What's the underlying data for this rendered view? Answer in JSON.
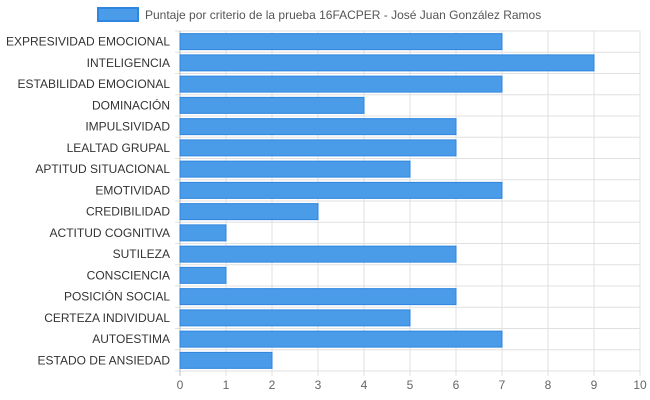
{
  "chart_data": {
    "type": "bar",
    "orientation": "horizontal",
    "categories": [
      "EXPRESIVIDAD EMOCIONAL",
      "INTELIGENCIA",
      "ESTABILIDAD EMOCIONAL",
      "DOMINACIÓN",
      "IMPULSIVIDAD",
      "LEALTAD GRUPAL",
      "APTITUD SITUACIONAL",
      "EMOTIVIDAD",
      "CREDIBILIDAD",
      "ACTITUD COGNITIVA",
      "SUTILEZA",
      "CONSCIENCIA",
      "POSICIÓN SOCIAL",
      "CERTEZA INDIVIDUAL",
      "AUTOESTIMA",
      "ESTADO DE ANSIEDAD"
    ],
    "series": [
      {
        "name": "Puntaje por criterio de la prueba 16FACPER - José Juan González Ramos",
        "values": [
          7,
          9,
          7,
          4,
          6,
          6,
          5,
          7,
          3,
          1,
          6,
          1,
          6,
          5,
          7,
          2
        ],
        "color": "#4a9be8",
        "border_color": "#2f86e0"
      }
    ],
    "xlim": [
      0,
      10
    ],
    "x_ticks": [
      "0",
      "1",
      "2",
      "3",
      "4",
      "5",
      "6",
      "7",
      "8",
      "9",
      "10"
    ],
    "grid": true,
    "grid_color": "#e0e0e0",
    "legend_position": "top"
  }
}
